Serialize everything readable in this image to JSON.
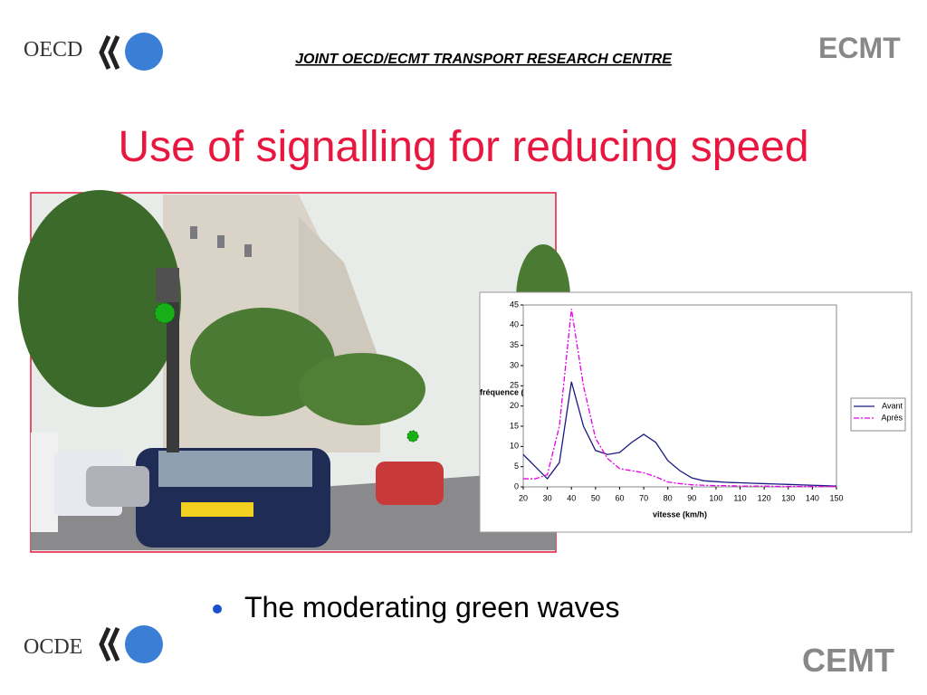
{
  "header": {
    "org_left": "OECD",
    "title": "JOINT OECD/ECMT TRANSPORT RESEARCH CENTRE",
    "org_right": "ECMT"
  },
  "title": "Use of signalling for reducing speed",
  "bullet": "The moderating green waves",
  "footer": {
    "org_left": "OCDE",
    "org_right": "CEMT"
  },
  "chart_data": {
    "type": "line",
    "x_label": "vitesse (km/h)",
    "y_label": "fréquence (%)",
    "x": [
      20,
      25,
      30,
      35,
      40,
      45,
      50,
      55,
      60,
      65,
      70,
      75,
      80,
      85,
      90,
      95,
      100,
      105,
      110,
      115,
      120,
      125,
      130,
      135,
      140,
      145,
      150
    ],
    "series": [
      {
        "name": "Avant",
        "color": "#1a1a80",
        "line_style": "solid",
        "values": [
          8,
          5,
          2,
          6,
          26,
          15,
          9,
          8,
          8.5,
          11,
          13,
          11,
          6.5,
          4,
          2.2,
          1.5,
          1.3,
          1.1,
          1,
          0.9,
          0.8,
          0.7,
          0.6,
          0.5,
          0.4,
          0.3,
          0.2
        ]
      },
      {
        "name": "Après",
        "color": "#e600e6",
        "line_style": "dashdot",
        "values": [
          2,
          2,
          3,
          15,
          44,
          25,
          12,
          7,
          4.5,
          4,
          3.5,
          2.5,
          1.2,
          0.8,
          0.5,
          0.4,
          0.3,
          0.3,
          0.2,
          0.2,
          0.2,
          0.1,
          0.1,
          0.1,
          0.1,
          0.1,
          0.1
        ]
      }
    ],
    "xlim": [
      20,
      150
    ],
    "xticks": [
      20,
      30,
      40,
      50,
      60,
      70,
      80,
      90,
      100,
      110,
      120,
      130,
      140,
      150
    ],
    "ylim": [
      0,
      45
    ],
    "yticks": [
      0,
      5,
      10,
      15,
      20,
      25,
      30,
      35,
      40,
      45
    ],
    "legend": "right"
  }
}
